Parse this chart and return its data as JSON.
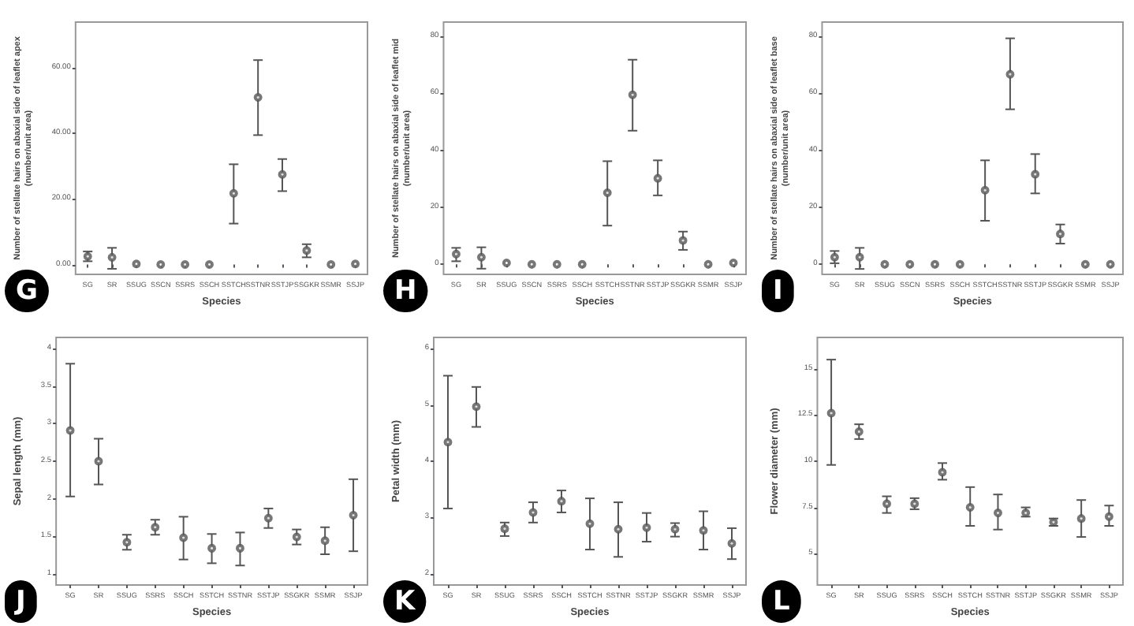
{
  "chart_data": [
    {
      "type": "scatter",
      "title": "G",
      "xlabel": "Species",
      "ylabel": "Number of stellate hairs on abaxial side of leaflet apex\n(number/unit area)",
      "categories": [
        "SG",
        "SR",
        "SSUG",
        "SSCN",
        "SSRS",
        "SSCH",
        "SSTCH",
        "SSTNR",
        "SSTJP",
        "SSGKR",
        "SSMR",
        "SSJP"
      ],
      "color": "#555555",
      "marker": "circle",
      "values": [
        2.5,
        2.2,
        0.2,
        0,
        0,
        0,
        21.7,
        51,
        27.5,
        4.3,
        0,
        0.2
      ],
      "errors": [
        [
          1,
          4
        ],
        [
          -1.3,
          5.1
        ],
        null,
        null,
        null,
        null,
        [
          12.5,
          30.6
        ],
        [
          39.5,
          62.4
        ],
        [
          22.4,
          32.2
        ],
        [
          2.2,
          6.2
        ],
        null,
        null
      ],
      "ylim": [
        -3,
        74
      ],
      "yticks": [
        {
          "value": 0,
          "label": "0.00"
        },
        {
          "value": 20,
          "label": "20.00"
        },
        {
          "value": 40,
          "label": "40.00"
        },
        {
          "value": 60,
          "label": "60.00"
        }
      ]
    },
    {
      "type": "scatter",
      "title": "H",
      "xlabel": "Species",
      "ylabel": "Number of stellate hairs on abaxial side of leaflet mid\n(number/unit area)",
      "categories": [
        "SG",
        "SR",
        "SSUG",
        "SSCN",
        "SSRS",
        "SSCH",
        "SSTCH",
        "SSTNR",
        "SSTJP",
        "SSGKR",
        "SSMR",
        "SSJP"
      ],
      "color": "#555555",
      "marker": "circle",
      "values": [
        3.6,
        2.5,
        0.5,
        0,
        0,
        0,
        25.1,
        59.5,
        30.2,
        8.4,
        0,
        0.5
      ],
      "errors": [
        [
          1.1,
          5.8
        ],
        [
          -1.5,
          6
        ],
        null,
        null,
        null,
        null,
        [
          13.6,
          36.2
        ],
        [
          46.9,
          71.8
        ],
        [
          24.2,
          36.5
        ],
        [
          5.1,
          11.5
        ],
        null,
        null
      ],
      "ylim": [
        -3.5,
        85
      ],
      "yticks": [
        0,
        20,
        40,
        60,
        80
      ]
    },
    {
      "type": "scatter",
      "title": "I",
      "xlabel": "Species",
      "ylabel": "Number of stellate hairs on abaxial side of leaflet base\n(number/unit area)",
      "categories": [
        "SG",
        "SR",
        "SSUG",
        "SSCN",
        "SSRS",
        "SSCH",
        "SSTCH",
        "SSTNR",
        "SSTJP",
        "SSGKR",
        "SSMR",
        "SSJP"
      ],
      "color": "#555555",
      "marker": "circle",
      "values": [
        2.5,
        2.5,
        0,
        0,
        0,
        0,
        26,
        66.7,
        31.6,
        10.7,
        0,
        0
      ],
      "errors": [
        [
          0.4,
          4.7
        ],
        [
          -1.6,
          5.8
        ],
        null,
        null,
        null,
        null,
        [
          15.3,
          36.5
        ],
        [
          54.4,
          79.3
        ],
        [
          24.9,
          38.7
        ],
        [
          7.3,
          14
        ],
        null,
        null
      ],
      "ylim": [
        -3.5,
        85
      ],
      "yticks": [
        0,
        20,
        40,
        60,
        80
      ]
    },
    {
      "type": "scatter",
      "title": "J",
      "xlabel": "Species",
      "ylabel": "Sepal length (mm)",
      "categories": [
        "SG",
        "SR",
        "SSUG",
        "SSRS",
        "SSCH",
        "SSTCH",
        "SSTNR",
        "SSTJP",
        "SSGKR",
        "SSMR",
        "SSJP"
      ],
      "color": "#555555",
      "marker": "circle",
      "values": [
        2.91,
        2.5,
        1.42,
        1.62,
        1.48,
        1.34,
        1.34,
        1.74,
        1.49,
        1.44,
        1.78
      ],
      "errors": [
        [
          2.03,
          3.8
        ],
        [
          2.19,
          2.8
        ],
        [
          1.32,
          1.52
        ],
        [
          1.52,
          1.72
        ],
        [
          1.19,
          1.76
        ],
        [
          1.14,
          1.53
        ],
        [
          1.11,
          1.55
        ],
        [
          1.61,
          1.87
        ],
        [
          1.39,
          1.59
        ],
        [
          1.26,
          1.62
        ],
        [
          1.3,
          2.26
        ]
      ],
      "ylim": [
        0.85,
        4.15
      ],
      "yticks": [
        1,
        1.5,
        2,
        2.5,
        3,
        3.5,
        4
      ]
    },
    {
      "type": "scatter",
      "title": "K",
      "xlabel": "Species",
      "ylabel": "Petal width (mm)",
      "categories": [
        "SG",
        "SR",
        "SSUG",
        "SSRS",
        "SSCH",
        "SSTCH",
        "SSTNR",
        "SSTJP",
        "SSGKR",
        "SSMR",
        "SSJP"
      ],
      "color": "#555555",
      "marker": "circle",
      "values": [
        4.34,
        4.97,
        2.8,
        3.09,
        3.29,
        2.89,
        2.79,
        2.82,
        2.79,
        2.77,
        2.54
      ],
      "errors": [
        [
          3.16,
          5.52
        ],
        [
          4.61,
          5.32
        ],
        [
          2.67,
          2.91
        ],
        [
          2.91,
          3.27
        ],
        [
          3.09,
          3.48
        ],
        [
          2.43,
          3.34
        ],
        [
          2.3,
          3.27
        ],
        [
          2.57,
          3.08
        ],
        [
          2.66,
          2.9
        ],
        [
          2.43,
          3.11
        ],
        [
          2.26,
          2.81
        ]
      ],
      "ylim": [
        1.8,
        6.2
      ],
      "yticks": [
        2,
        3,
        4,
        5,
        6
      ]
    },
    {
      "type": "scatter",
      "title": "L",
      "xlabel": "Species",
      "ylabel": "Flower diameter (mm)",
      "categories": [
        "SG",
        "SR",
        "SSUG",
        "SSRS",
        "SSCH",
        "SSTCH",
        "SSTNR",
        "SSTJP",
        "SSGKR",
        "SSMR",
        "SSJP"
      ],
      "color": "#555555",
      "marker": "circle",
      "values": [
        12.6,
        11.6,
        7.7,
        7.7,
        9.4,
        7.5,
        7.2,
        7.2,
        6.7,
        6.9,
        7.0
      ],
      "errors": [
        [
          9.8,
          15.5
        ],
        [
          11.2,
          12.0
        ],
        [
          7.2,
          8.1
        ],
        [
          7.4,
          8.0
        ],
        [
          9.0,
          9.9
        ],
        [
          6.5,
          8.6
        ],
        [
          6.3,
          8.2
        ],
        [
          7.0,
          7.5
        ],
        [
          6.5,
          6.9
        ],
        [
          5.9,
          7.9
        ],
        [
          6.5,
          7.6
        ]
      ],
      "ylim": [
        3.3,
        16.7
      ],
      "yticks": [
        5,
        7.5,
        10,
        12.5,
        15
      ]
    }
  ]
}
